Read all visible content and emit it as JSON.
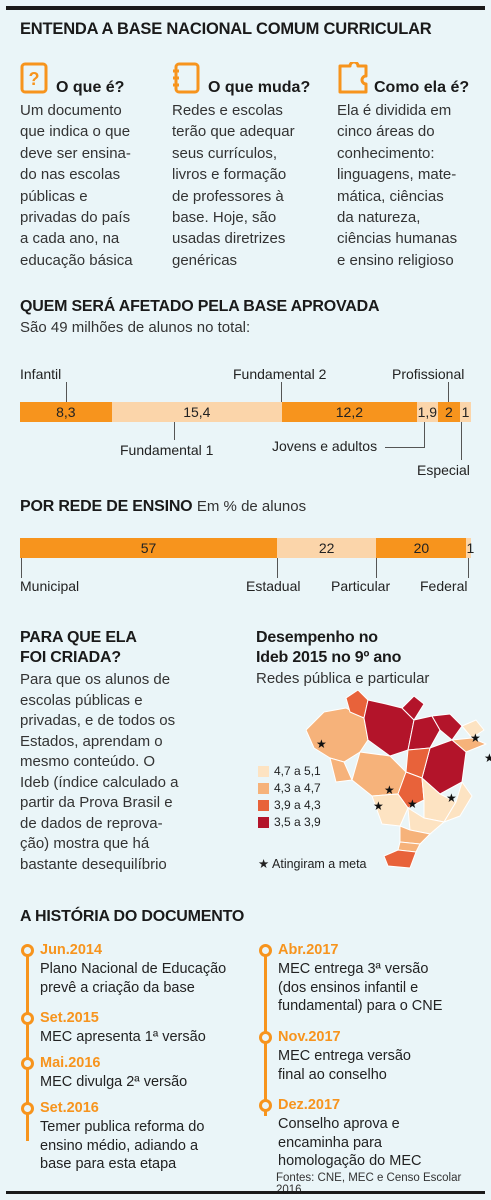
{
  "title": "ENTENDA A BASE NACIONAL COMUM CURRICULAR",
  "intro": [
    {
      "icon": "question-box-icon",
      "heading": "O que é?",
      "lines": [
        "Um documento",
        "que indica o que",
        "deve ser ensina-",
        "do nas escolas",
        "públicas e",
        "privadas do país",
        "a cada ano, na",
        "educação básica"
      ]
    },
    {
      "icon": "notebook-icon",
      "heading": "O que muda?",
      "lines": [
        "Redes e escolas",
        "terão que adequar",
        "seus currículos,",
        "livros e formação",
        "de professores à",
        "base. Hoje, são",
        "usadas diretrizes",
        "genéricas"
      ]
    },
    {
      "icon": "puzzle-icon",
      "heading": "Como ela é?",
      "lines": [
        "Ela é dividida em",
        "cinco áreas do",
        "conhecimento:",
        "linguagens, mate-",
        "mática, ciências",
        "da natureza,",
        "ciências humanas",
        "e ensino religioso"
      ]
    }
  ],
  "affected": {
    "title": "QUEM SERÁ AFETADO PELA BASE APROVADA",
    "subtitle": "São 49 milhões de alunos no total:"
  },
  "network": {
    "title": "POR REDE DE ENSINO",
    "subtitle": "Em % de alunos"
  },
  "chart_data": [
    {
      "type": "bar",
      "stacked": true,
      "unit": "milhões de alunos",
      "categories": [
        "Infantil",
        "Fundamental 1",
        "Fundamental 2",
        "Jovens e adultos",
        "Profissional",
        "Especial"
      ],
      "values": [
        8.3,
        15.4,
        12.2,
        1.9,
        2,
        1
      ],
      "value_labels": [
        "8,3",
        "15,4",
        "12,2",
        "1,9",
        "2",
        "1"
      ],
      "colors": [
        "#f7941d",
        "#fbd5aa",
        "#f7941d",
        "#fbd5aa",
        "#f7941d",
        "#fbd5aa"
      ]
    },
    {
      "type": "bar",
      "stacked": true,
      "unit": "%",
      "categories": [
        "Municipal",
        "Estadual",
        "Particular",
        "Federal"
      ],
      "values": [
        57,
        22,
        20,
        1
      ],
      "value_labels": [
        "57",
        "22",
        "20",
        "1"
      ],
      "colors": [
        "#f7941d",
        "#fbd5aa",
        "#f7941d",
        "#fbd5aa"
      ]
    }
  ],
  "purpose": {
    "title_lines": [
      "PARA QUE ELA",
      "FOI CRIADA?"
    ],
    "lines": [
      "Para que os alunos de",
      "escolas públicas e",
      "privadas, e de todos os",
      "Estados, aprendam o",
      "mesmo conteúdo. O",
      "Ideb (índice calculado a",
      "partir da Prova Brasil e",
      "de dados de reprova-",
      "ção) mostra que há",
      "bastante desequilíbrio"
    ]
  },
  "map": {
    "title_lines": [
      "Desempenho no",
      "Ideb 2015 no 9º ano"
    ],
    "subtitle": "Redes pública e particular",
    "legend": [
      {
        "label": "4,7 a 5,1",
        "color": "#fde3c2"
      },
      {
        "label": "4,3 a 4,7",
        "color": "#f6b27a"
      },
      {
        "label": "3,9 a 4,3",
        "color": "#e8623a"
      },
      {
        "label": "3,5 a 3,9",
        "color": "#b3142a"
      }
    ],
    "goal_label": "Atingiram a meta"
  },
  "history": {
    "title": "A HISTÓRIA DO DOCUMENTO",
    "left": [
      {
        "date": "Jun.2014",
        "lines": [
          "Plano Nacional de Educação",
          "prevê a criação da base"
        ]
      },
      {
        "date": "Set.2015",
        "lines": [
          "MEC apresenta 1ª versão"
        ]
      },
      {
        "date": "Mai.2016",
        "lines": [
          "MEC divulga 2ª versão"
        ]
      },
      {
        "date": "Set.2016",
        "lines": [
          "Temer publica reforma do",
          "ensino médio, adiando a",
          "base para esta etapa"
        ]
      }
    ],
    "right": [
      {
        "date": "Abr.2017",
        "lines": [
          "MEC entrega 3ª versão",
          "(dos ensinos infantil e",
          "fundamental) para o CNE"
        ]
      },
      {
        "date": "Nov.2017",
        "lines": [
          "MEC entrega versão",
          "final  ao conselho"
        ]
      },
      {
        "date": "Dez.2017",
        "lines": [
          "Conselho aprova e",
          "encaminha para",
          "homologação do MEC"
        ]
      }
    ]
  },
  "sources": "Fontes: CNE, MEC e Censo Escolar 2016"
}
